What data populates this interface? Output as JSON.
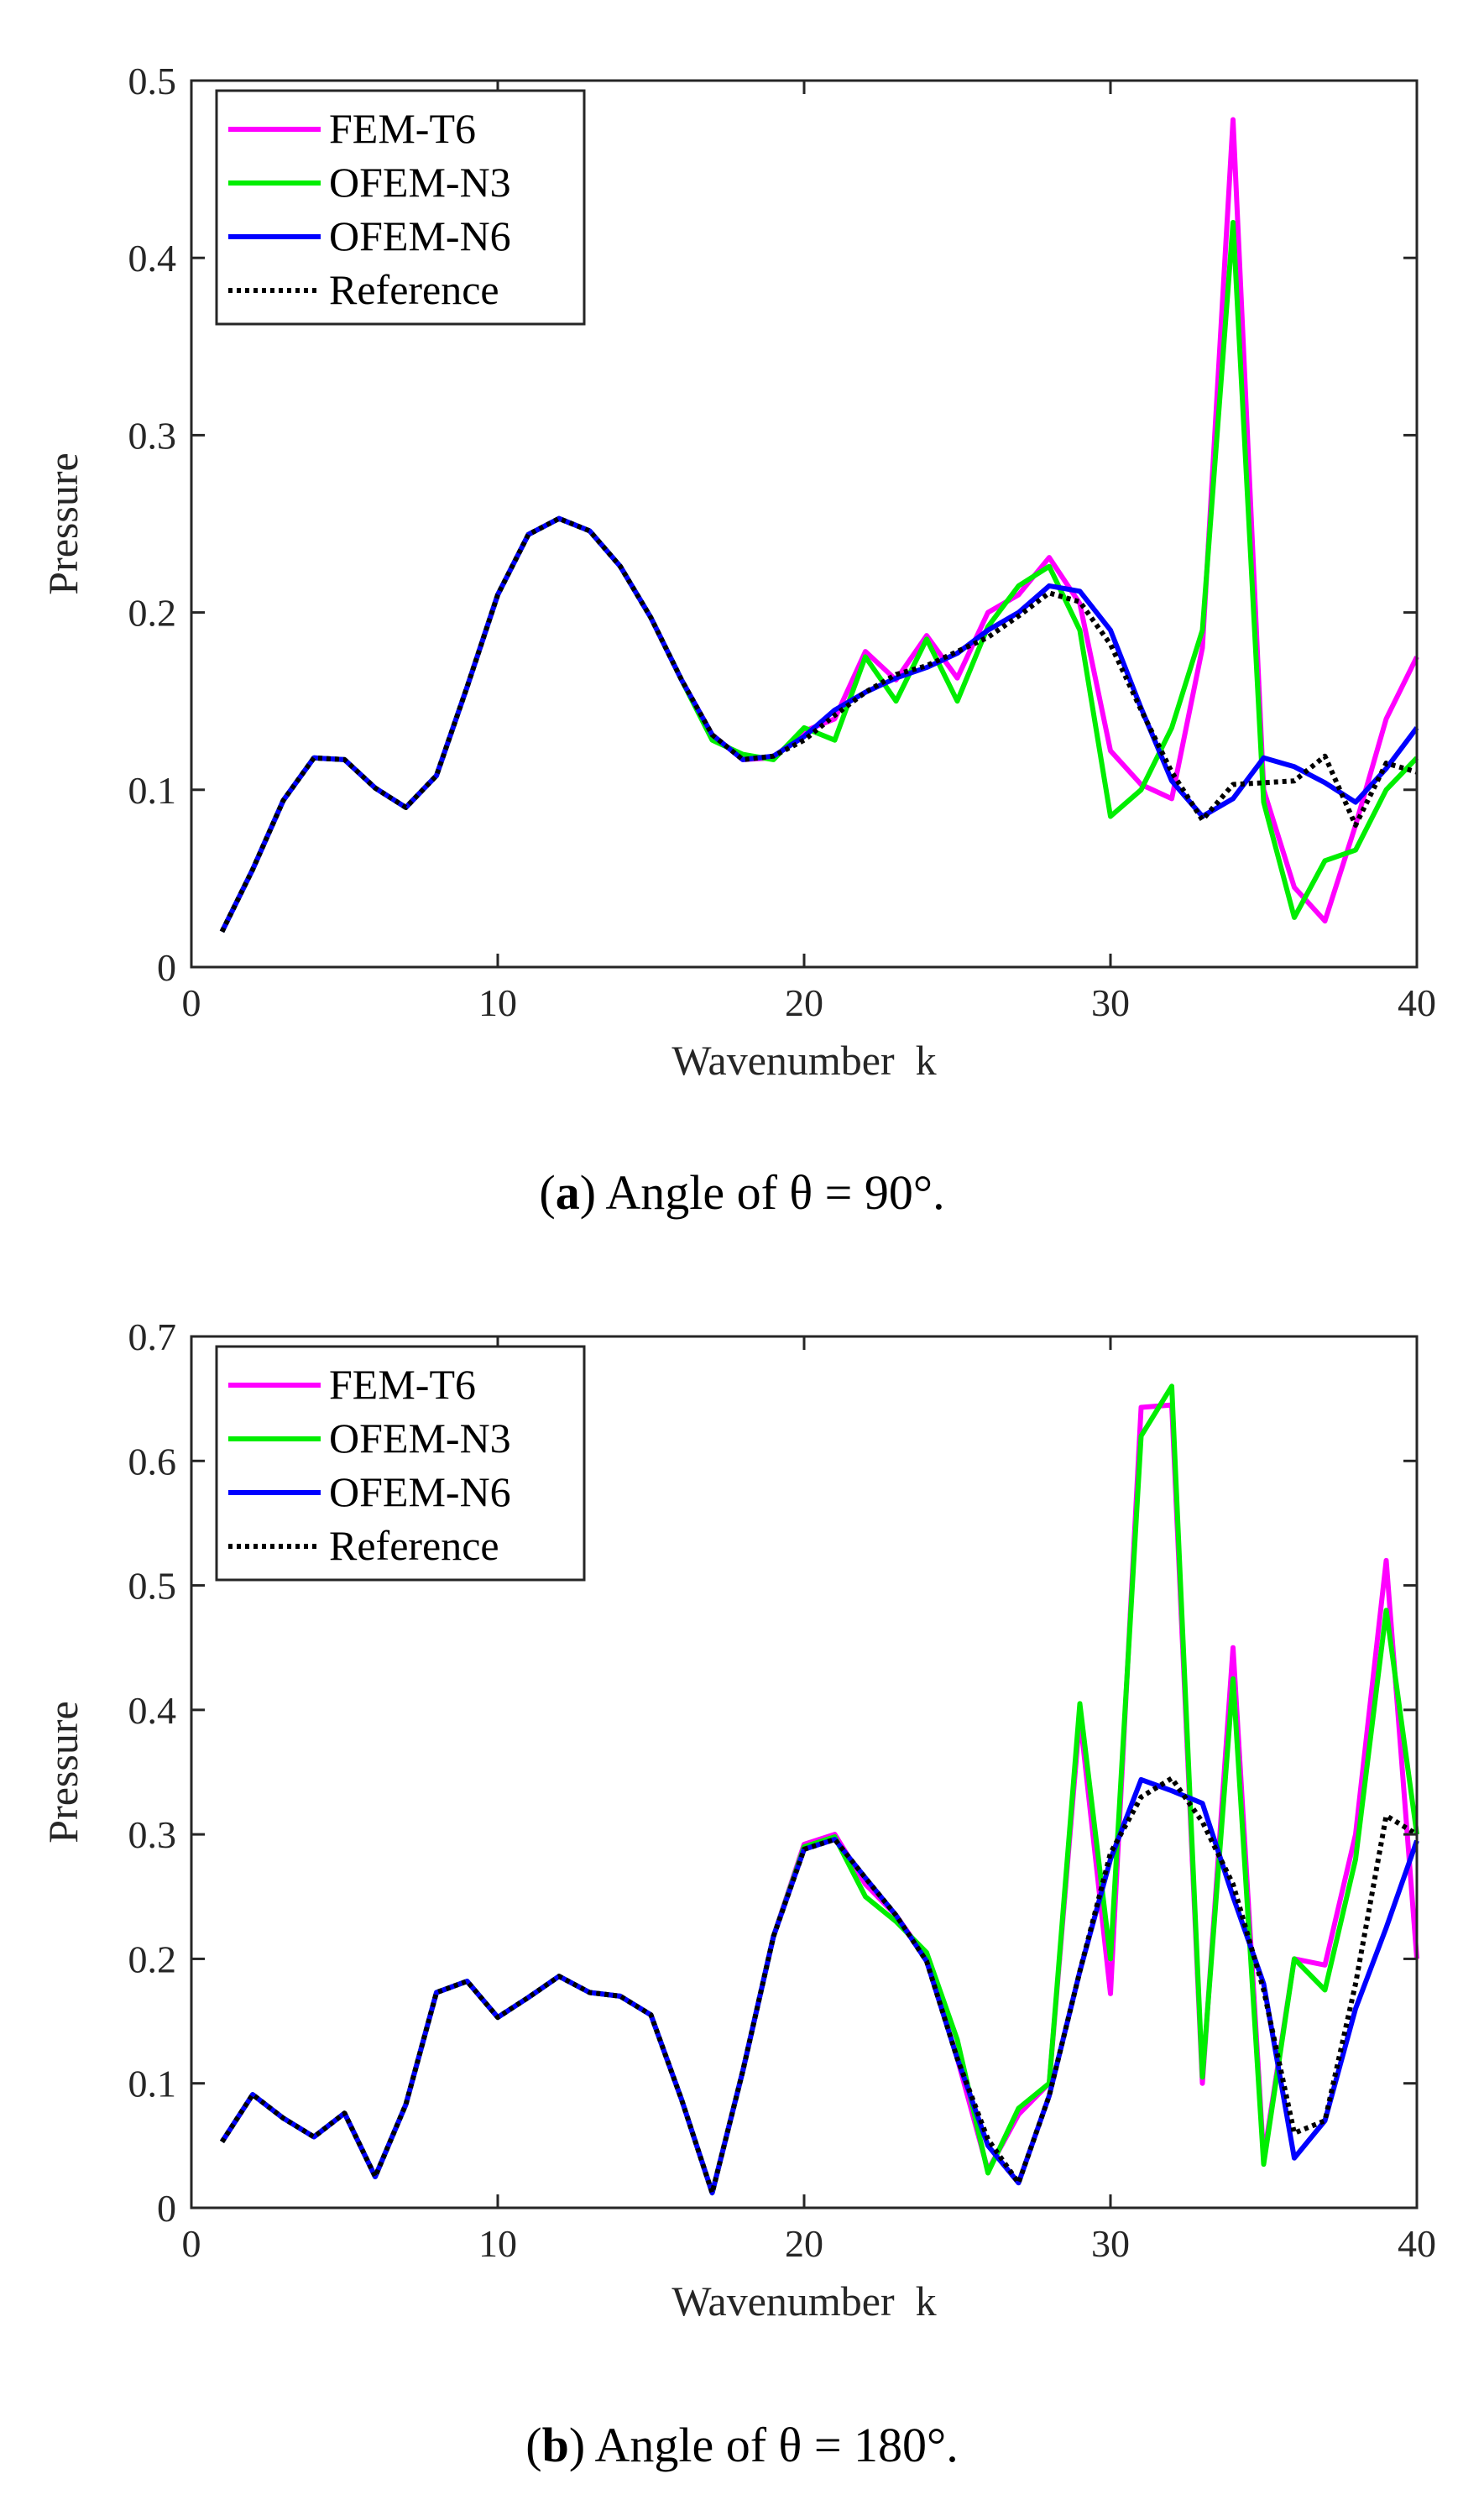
{
  "chart_data": [
    {
      "type": "line",
      "caption_letter": "a",
      "caption_text": "Angle of θ = 90°.",
      "xlabel": "Wavenumber  k",
      "ylabel": "Pressure",
      "xlim": [
        0,
        40
      ],
      "ylim": [
        0,
        0.5
      ],
      "xticks": [
        0,
        10,
        20,
        30,
        40
      ],
      "yticks": [
        0,
        0.1,
        0.2,
        0.3,
        0.4,
        0.5
      ],
      "legend_position": "top-left",
      "x": [
        1,
        2,
        3,
        4,
        5,
        6,
        7,
        8,
        9,
        10,
        11,
        12,
        13,
        14,
        15,
        16,
        17,
        18,
        19,
        20,
        21,
        22,
        23,
        24,
        25,
        26,
        27,
        28,
        29,
        30,
        31,
        32,
        33,
        34,
        35,
        36,
        37,
        38,
        39,
        40
      ],
      "series": [
        {
          "name": "FEM-T6",
          "color": "#ff00ff",
          "style": "solid",
          "values": [
            0.02,
            0.055,
            0.094,
            0.118,
            0.117,
            0.101,
            0.09,
            0.108,
            0.158,
            0.21,
            0.244,
            0.253,
            0.246,
            0.226,
            0.197,
            0.162,
            0.131,
            0.117,
            0.118,
            0.133,
            0.14,
            0.178,
            0.162,
            0.187,
            0.163,
            0.2,
            0.21,
            0.231,
            0.205,
            0.122,
            0.103,
            0.095,
            0.18,
            0.478,
            0.1,
            0.045,
            0.026,
            0.08,
            0.14,
            0.175
          ]
        },
        {
          "name": "OFEM-N3",
          "color": "#00ee00",
          "style": "solid",
          "values": [
            0.02,
            0.055,
            0.094,
            0.118,
            0.117,
            0.101,
            0.09,
            0.108,
            0.158,
            0.21,
            0.244,
            0.253,
            0.246,
            0.226,
            0.197,
            0.162,
            0.128,
            0.12,
            0.117,
            0.135,
            0.128,
            0.175,
            0.15,
            0.185,
            0.15,
            0.192,
            0.215,
            0.226,
            0.19,
            0.085,
            0.1,
            0.135,
            0.19,
            0.42,
            0.093,
            0.028,
            0.06,
            0.066,
            0.1,
            0.118
          ]
        },
        {
          "name": "OFEM-N6",
          "color": "#0000ff",
          "style": "solid",
          "values": [
            0.02,
            0.055,
            0.094,
            0.118,
            0.117,
            0.101,
            0.09,
            0.108,
            0.158,
            0.21,
            0.244,
            0.253,
            0.246,
            0.226,
            0.197,
            0.162,
            0.131,
            0.117,
            0.119,
            0.13,
            0.145,
            0.155,
            0.163,
            0.169,
            0.177,
            0.19,
            0.2,
            0.215,
            0.212,
            0.19,
            0.146,
            0.105,
            0.085,
            0.095,
            0.118,
            0.113,
            0.104,
            0.093,
            0.112,
            0.135
          ]
        },
        {
          "name": "Reference",
          "color": "#000000",
          "style": "dotted",
          "values": [
            0.02,
            0.055,
            0.094,
            0.118,
            0.117,
            0.101,
            0.09,
            0.108,
            0.158,
            0.21,
            0.244,
            0.253,
            0.246,
            0.226,
            0.197,
            0.162,
            0.131,
            0.117,
            0.119,
            0.128,
            0.142,
            0.155,
            0.165,
            0.17,
            0.178,
            0.186,
            0.198,
            0.211,
            0.206,
            0.182,
            0.145,
            0.11,
            0.083,
            0.103,
            0.104,
            0.105,
            0.119,
            0.08,
            0.115,
            0.11
          ]
        }
      ]
    },
    {
      "type": "line",
      "caption_letter": "b",
      "caption_text": "Angle of θ = 180°.",
      "xlabel": "Wavenumber  k",
      "ylabel": "Pressure",
      "xlim": [
        0,
        40
      ],
      "ylim": [
        0,
        0.7
      ],
      "xticks": [
        0,
        10,
        20,
        30,
        40
      ],
      "yticks": [
        0,
        0.1,
        0.2,
        0.3,
        0.4,
        0.5,
        0.6,
        0.7
      ],
      "legend_position": "top-left",
      "x": [
        1,
        2,
        3,
        4,
        5,
        6,
        7,
        8,
        9,
        10,
        11,
        12,
        13,
        14,
        15,
        16,
        17,
        18,
        19,
        20,
        21,
        22,
        23,
        24,
        25,
        26,
        27,
        28,
        29,
        30,
        31,
        32,
        33,
        34,
        35,
        36,
        37,
        38,
        39,
        40
      ],
      "series": [
        {
          "name": "FEM-T6",
          "color": "#ff00ff",
          "style": "solid",
          "values": [
            0.053,
            0.091,
            0.072,
            0.057,
            0.076,
            0.025,
            0.083,
            0.173,
            0.182,
            0.153,
            0.169,
            0.186,
            0.173,
            0.17,
            0.155,
            0.087,
            0.012,
            0.11,
            0.218,
            0.292,
            0.3,
            0.26,
            0.235,
            0.2,
            0.12,
            0.03,
            0.075,
            0.1,
            0.395,
            0.172,
            0.643,
            0.645,
            0.1,
            0.45,
            0.04,
            0.2,
            0.195,
            0.3,
            0.52,
            0.2
          ]
        },
        {
          "name": "OFEM-N3",
          "color": "#00ee00",
          "style": "solid",
          "values": [
            0.053,
            0.091,
            0.072,
            0.057,
            0.076,
            0.025,
            0.083,
            0.173,
            0.182,
            0.153,
            0.169,
            0.186,
            0.173,
            0.17,
            0.155,
            0.087,
            0.012,
            0.11,
            0.218,
            0.29,
            0.298,
            0.25,
            0.23,
            0.205,
            0.135,
            0.028,
            0.08,
            0.1,
            0.405,
            0.2,
            0.62,
            0.66,
            0.105,
            0.425,
            0.035,
            0.2,
            0.175,
            0.28,
            0.48,
            0.3
          ]
        },
        {
          "name": "OFEM-N6",
          "color": "#0000ff",
          "style": "solid",
          "values": [
            0.053,
            0.091,
            0.072,
            0.057,
            0.076,
            0.025,
            0.083,
            0.173,
            0.182,
            0.153,
            0.169,
            0.186,
            0.173,
            0.17,
            0.155,
            0.087,
            0.012,
            0.11,
            0.218,
            0.288,
            0.296,
            0.265,
            0.235,
            0.198,
            0.12,
            0.05,
            0.02,
            0.09,
            0.19,
            0.28,
            0.344,
            0.335,
            0.325,
            0.25,
            0.18,
            0.04,
            0.07,
            0.16,
            0.225,
            0.295
          ]
        },
        {
          "name": "Reference",
          "color": "#000000",
          "style": "dotted",
          "values": [
            0.053,
            0.091,
            0.072,
            0.057,
            0.076,
            0.025,
            0.083,
            0.173,
            0.182,
            0.153,
            0.169,
            0.186,
            0.173,
            0.17,
            0.155,
            0.087,
            0.012,
            0.11,
            0.218,
            0.288,
            0.296,
            0.265,
            0.235,
            0.198,
            0.12,
            0.055,
            0.02,
            0.09,
            0.19,
            0.285,
            0.33,
            0.345,
            0.31,
            0.26,
            0.175,
            0.06,
            0.07,
            0.18,
            0.315,
            0.3
          ]
        }
      ]
    }
  ]
}
